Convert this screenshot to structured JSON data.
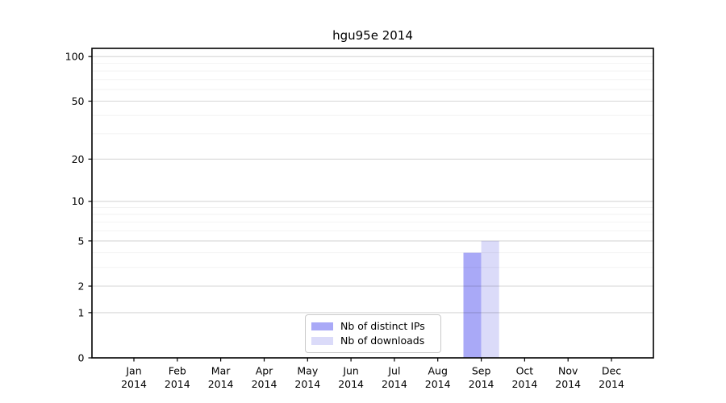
{
  "chart_data": {
    "type": "bar",
    "title": "hgu95e 2014",
    "year": "2014",
    "categories": [
      "Jan",
      "Feb",
      "Mar",
      "Apr",
      "May",
      "Jun",
      "Jul",
      "Aug",
      "Sep",
      "Oct",
      "Nov",
      "Dec"
    ],
    "series": [
      {
        "name": "Nb of distinct IPs",
        "color": "#a9a9f7",
        "values": [
          0,
          0,
          0,
          0,
          0,
          0,
          0,
          0,
          4,
          0,
          0,
          0
        ]
      },
      {
        "name": "Nb of downloads",
        "color": "#dbdbf9",
        "values": [
          0,
          0,
          0,
          0,
          0,
          0,
          0,
          0,
          5,
          0,
          0,
          0
        ]
      }
    ],
    "yscale": "log1p",
    "ylim": [
      0,
      114
    ],
    "yticks": [
      0,
      1,
      2,
      5,
      10,
      20,
      50,
      100
    ],
    "minor_gridlines": [
      3,
      4,
      6,
      7,
      8,
      9,
      30,
      40,
      60,
      70,
      80,
      90
    ],
    "grid": "both",
    "legend_position": "bottom-center",
    "colors": {
      "axis": "#000000",
      "major_grid": "rgba(0,0,0,0.16)",
      "minor_grid": "rgba(0,0,0,0.05)",
      "text": "#000000"
    }
  }
}
